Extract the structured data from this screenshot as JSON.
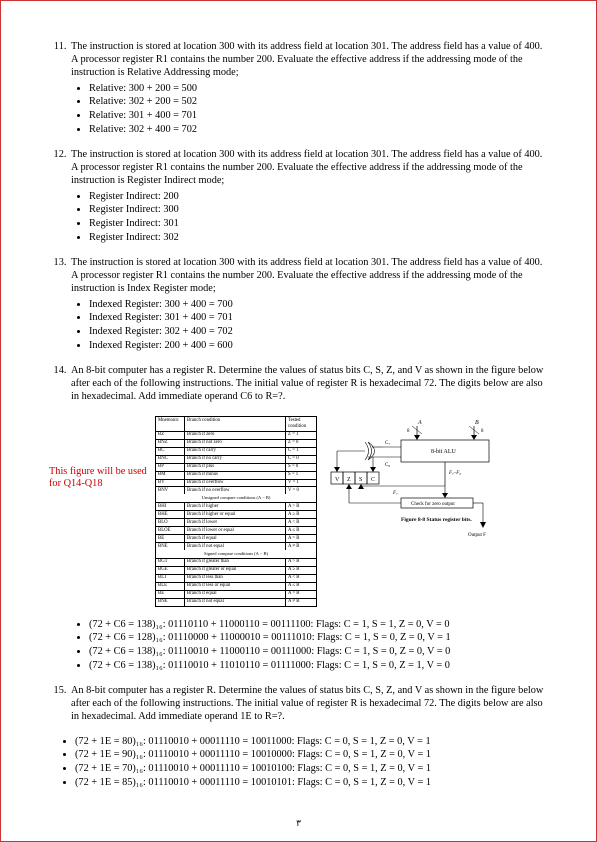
{
  "questions": [
    {
      "num": 11,
      "prompt": "The instruction is stored at location 300 with its address field at location 301. The address field has a value of 400. A processor register R1 contains the number 200. Evaluate the effective address if the addressing mode of the instruction is Relative Addressing mode;",
      "options": [
        "Relative: 300 + 200 = 500",
        "Relative: 302 + 200 = 502",
        "Relative: 301 + 400 = 701",
        "Relative: 302 + 400 = 702"
      ]
    },
    {
      "num": 12,
      "prompt": "The instruction is stored at location 300 with its address field at location 301. The address field has a value of 400. A processor register R1 contains the number 200. Evaluate the effective address if the addressing mode of the instruction is Register Indirect mode;",
      "options": [
        "Register Indirect: 200",
        "Register Indirect: 300",
        "Register Indirect: 301",
        "Register Indirect: 302"
      ]
    },
    {
      "num": 13,
      "prompt": "The instruction is stored at location 300 with its address field at location 301. The address field has a value of 400. A processor register R1 contains the number 200. Evaluate the effective address if the addressing mode of the instruction is Index Register mode;",
      "options": [
        "Indexed Register: 300 + 400 = 700",
        "Indexed Register: 301 + 400 = 701",
        "Indexed Register: 302 + 400 = 702",
        "Indexed Register: 200 + 400 = 600"
      ]
    },
    {
      "num": 14,
      "prompt": "An 8-bit computer has a register R. Determine the values of status bits C, S, Z, and V as shown in the figure below after each of the following instructions. The initial value of register R is hexadecimal 72. The digits below are also in hexadecimal. Add immediate operand C6 to R=?."
    },
    {
      "num": 15,
      "prompt": "An 8-bit computer has a register R. Determine the values of status bits C, S, Z, and V as shown in the figure below after each of the following instructions. The initial value of register R is hexadecimal 72. The digits below are also in hexadecimal. Add immediate operand 1E to R=?."
    }
  ],
  "fig_note": "This figure will be used for Q14-Q18",
  "table": {
    "headers": [
      "Mnemonic",
      "Branch condition",
      "Tested condition"
    ],
    "rows1": [
      [
        "BZ",
        "Branch if zero",
        "Z = 1"
      ],
      [
        "BNZ",
        "Branch if not zero",
        "Z = 0"
      ],
      [
        "BC",
        "Branch if carry",
        "C = 1"
      ],
      [
        "BNC",
        "Branch if no carry",
        "C = 0"
      ],
      [
        "BP",
        "Branch if plus",
        "S = 0"
      ],
      [
        "BM",
        "Branch if minus",
        "S = 1"
      ],
      [
        "BV",
        "Branch if overflow",
        "V = 1"
      ],
      [
        "BNV",
        "Branch if no overflow",
        "V = 0"
      ]
    ],
    "section1": "Unsigned compare conditions (A − B)",
    "rows2": [
      [
        "BHI",
        "Branch if higher",
        "A > B"
      ],
      [
        "BHE",
        "Branch if higher or equal",
        "A ≥ B"
      ],
      [
        "BLO",
        "Branch if lower",
        "A < B"
      ],
      [
        "BLOE",
        "Branch if lower or equal",
        "A ≤ B"
      ],
      [
        "BE",
        "Branch if equal",
        "A = B"
      ],
      [
        "BNE",
        "Branch if not equal",
        "A ≠ B"
      ]
    ],
    "section2": "Signed compare conditions (A − B)",
    "rows3": [
      [
        "BGT",
        "Branch if greater than",
        "A > B"
      ],
      [
        "BGE",
        "Branch if greater or equal",
        "A ≥ B"
      ],
      [
        "BLT",
        "Branch if less than",
        "A < B"
      ],
      [
        "BLE",
        "Branch if less or equal",
        "A ≤ B"
      ],
      [
        "BE",
        "Branch if equal",
        "A = B"
      ],
      [
        "BNE",
        "Branch if not equal",
        "A ≠ B"
      ]
    ]
  },
  "diagram": {
    "a_label": "A",
    "b_label": "B",
    "alu_label": "8-bit ALU",
    "c7": "C₇",
    "c8": "C₈",
    "v": "V",
    "z": "Z",
    "s": "S",
    "c": "C",
    "f7": "F₇",
    "f7f0": "F₇–F₀",
    "zero_check": "Check for zero output",
    "fig_caption": "Figure 8-8   Status register bits.",
    "output_f": "Output F"
  },
  "q14_answers": [
    "(72 + C6 = 138)₁₆: 01110110 + 11000110 = 00111100: Flags: C = 1, S = 1, Z = 0, V = 0",
    "(72 + C6 = 128)₁₆: 01110000 + 11000010 = 00111010: Flags: C = 1, S = 0, Z = 0, V = 1",
    "(72 + C6 = 138)₁₆: 01110010 + 11000110 = 00111000: Flags: C = 1, S = 0, Z = 0, V = 0",
    "(72 + C6 = 138)₁₆: 01110010 + 11010110 = 01111000: Flags: C = 1, S = 0, Z = 1, V = 0"
  ],
  "q15_answers": [
    "(72 + 1E = 80)₁₆: 01110010 + 00011110 = 10011000: Flags: C = 0, S = 1, Z = 0, V = 1",
    "(72 + 1E = 90)₁₆: 01110010 + 00011110 = 10010000: Flags: C = 0, S = 1, Z = 0, V = 1",
    "(72 + 1E = 70)₁₆: 01110010 + 00011110 = 10010100: Flags: C = 0, S = 1, Z = 0, V = 1",
    "(72 + 1E = 85)₁₆: 01110010 + 00011110 = 10010101: Flags: C = 0, S = 1, Z = 0, V = 1"
  ],
  "pagenum": "٣"
}
